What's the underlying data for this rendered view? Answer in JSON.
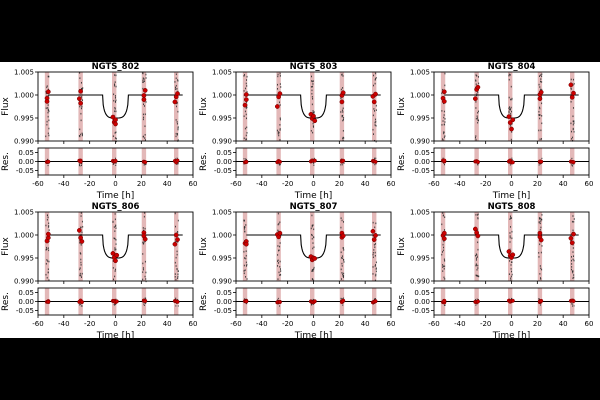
{
  "figure": {
    "background": "#ffffff",
    "band_color": "#000000",
    "model_color": "#000000",
    "point_color": "#cc0000",
    "raw_color": "#333333",
    "window_color": "#d9a0a0"
  },
  "chart_data": [
    {
      "type": "scatter",
      "title": "NGTS_802",
      "xlabel": "Time [h]",
      "ylabel_top": "Flux",
      "ylabel_bottom": "Res.",
      "xlim": [
        -60,
        60
      ],
      "xticks": [
        -60,
        -40,
        -20,
        0,
        20,
        40,
        60
      ],
      "ylim_top": [
        0.99,
        1.005
      ],
      "yticks_top": [
        "0.990",
        "0.995",
        "1.000",
        "1.005"
      ],
      "ylim_bottom": [
        -0.075,
        0.075
      ],
      "yticks_bottom": [
        "-0.05",
        "0.00",
        "0.05"
      ],
      "observation_windows": [
        -53,
        -27,
        -1,
        22,
        47
      ],
      "transit_model": {
        "baseline": 1.0,
        "depth": 0.005,
        "center": 0,
        "half_width": 10
      },
      "binned_points": [
        {
          "x": -53,
          "y": 0.9993
        },
        {
          "x": -53,
          "y": 0.9986
        },
        {
          "x": -52,
          "y": 1.0007
        },
        {
          "x": -28,
          "y": 0.9992
        },
        {
          "x": -27,
          "y": 0.9982
        },
        {
          "x": -27,
          "y": 1.0008
        },
        {
          "x": -2,
          "y": 0.9952
        },
        {
          "x": -1,
          "y": 0.9941
        },
        {
          "x": 0,
          "y": 0.9946
        },
        {
          "x": 0,
          "y": 0.9937
        },
        {
          "x": 22,
          "y": 0.9999
        },
        {
          "x": 22,
          "y": 0.999
        },
        {
          "x": 23,
          "y": 1.001
        },
        {
          "x": 46,
          "y": 0.9985
        },
        {
          "x": 47,
          "y": 0.9996
        },
        {
          "x": 48,
          "y": 1.0003
        }
      ]
    },
    {
      "type": "scatter",
      "title": "NGTS_803",
      "xlabel": "Time [h]",
      "ylabel_top": "Flux",
      "ylabel_bottom": "Res.",
      "xlim": [
        -60,
        60
      ],
      "xticks": [
        -60,
        -40,
        -20,
        0,
        20,
        40,
        60
      ],
      "ylim_top": [
        0.99,
        1.005
      ],
      "yticks_top": [
        "0.990",
        "0.995",
        "1.000",
        "1.005"
      ],
      "ylim_bottom": [
        -0.075,
        0.075
      ],
      "yticks_bottom": [
        "-0.05",
        "0.00",
        "0.05"
      ],
      "observation_windows": [
        -53,
        -27,
        -1,
        22,
        47
      ],
      "transit_model": {
        "baseline": 1.0,
        "depth": 0.005,
        "center": 0,
        "half_width": 10
      },
      "binned_points": [
        {
          "x": -53,
          "y": 0.9978
        },
        {
          "x": -52,
          "y": 1.0001
        },
        {
          "x": -52,
          "y": 0.999
        },
        {
          "x": -28,
          "y": 0.9975
        },
        {
          "x": -27,
          "y": 0.9996
        },
        {
          "x": -26,
          "y": 1.0003
        },
        {
          "x": -2,
          "y": 0.9958
        },
        {
          "x": -1,
          "y": 0.9949
        },
        {
          "x": 0,
          "y": 0.9954
        },
        {
          "x": 1,
          "y": 0.9944
        },
        {
          "x": 22,
          "y": 0.9999
        },
        {
          "x": 22,
          "y": 0.9985
        },
        {
          "x": 23,
          "y": 1.0005
        },
        {
          "x": 46,
          "y": 0.9997
        },
        {
          "x": 47,
          "y": 0.9985
        },
        {
          "x": 48,
          "y": 1.0002
        }
      ]
    },
    {
      "type": "scatter",
      "title": "NGTS_804",
      "xlabel": "Time [h]",
      "ylabel_top": "Flux",
      "ylabel_bottom": "Res.",
      "xlim": [
        -60,
        60
      ],
      "xticks": [
        -60,
        -40,
        -20,
        0,
        20,
        40,
        60
      ],
      "ylim_top": [
        0.99,
        1.005
      ],
      "yticks_top": [
        "0.990",
        "0.995",
        "1.000",
        "1.005"
      ],
      "ylim_bottom": [
        -0.075,
        0.075
      ],
      "yticks_bottom": [
        "-0.05",
        "0.00",
        "0.05"
      ],
      "observation_windows": [
        -53,
        -27,
        -1,
        22,
        47
      ],
      "transit_model": {
        "baseline": 1.0,
        "depth": 0.005,
        "center": 0,
        "half_width": 10
      },
      "binned_points": [
        {
          "x": -53,
          "y": 0.9993
        },
        {
          "x": -52,
          "y": 0.9986
        },
        {
          "x": -52,
          "y": 1.0007
        },
        {
          "x": -28,
          "y": 0.9992
        },
        {
          "x": -27,
          "y": 1.0012
        },
        {
          "x": -26,
          "y": 1.0017
        },
        {
          "x": -2,
          "y": 0.9953
        },
        {
          "x": -1,
          "y": 0.994
        },
        {
          "x": 0,
          "y": 0.9926
        },
        {
          "x": 1,
          "y": 0.9946
        },
        {
          "x": 22,
          "y": 1.0001
        },
        {
          "x": 22,
          "y": 0.9992
        },
        {
          "x": 23,
          "y": 1.0006
        },
        {
          "x": 46,
          "y": 1.0022
        },
        {
          "x": 47,
          "y": 0.9995
        },
        {
          "x": 48,
          "y": 1.0004
        }
      ]
    },
    {
      "type": "scatter",
      "title": "NGTS_806",
      "xlabel": "Time [h]",
      "ylabel_top": "Flux",
      "ylabel_bottom": "Res.",
      "xlim": [
        -60,
        60
      ],
      "xticks": [
        -60,
        -40,
        -20,
        0,
        20,
        40,
        60
      ],
      "ylim_top": [
        0.99,
        1.005
      ],
      "yticks_top": [
        "0.990",
        "0.995",
        "1.000",
        "1.005"
      ],
      "ylim_bottom": [
        -0.075,
        0.075
      ],
      "yticks_bottom": [
        "-0.05",
        "0.00",
        "0.05"
      ],
      "observation_windows": [
        -53,
        -27,
        -1,
        22,
        47
      ],
      "transit_model": {
        "baseline": 1.0,
        "depth": 0.005,
        "center": 0,
        "half_width": 10
      },
      "binned_points": [
        {
          "x": -53,
          "y": 0.9987
        },
        {
          "x": -52,
          "y": 0.9994
        },
        {
          "x": -52,
          "y": 1.0002
        },
        {
          "x": -28,
          "y": 1.001
        },
        {
          "x": -27,
          "y": 0.9994
        },
        {
          "x": -26,
          "y": 0.9986
        },
        {
          "x": -2,
          "y": 0.996
        },
        {
          "x": -1,
          "y": 0.9951
        },
        {
          "x": 0,
          "y": 0.9944
        },
        {
          "x": 1,
          "y": 0.9956
        },
        {
          "x": 22,
          "y": 1.0005
        },
        {
          "x": 22,
          "y": 0.9998
        },
        {
          "x": 23,
          "y": 0.9991
        },
        {
          "x": 46,
          "y": 0.998
        },
        {
          "x": 47,
          "y": 1.0
        },
        {
          "x": 48,
          "y": 0.999
        }
      ]
    },
    {
      "type": "scatter",
      "title": "NGTS_807",
      "xlabel": "Time [h]",
      "ylabel_top": "Flux",
      "ylabel_bottom": "Res.",
      "xlim": [
        -60,
        60
      ],
      "xticks": [
        -60,
        -40,
        -20,
        0,
        20,
        40,
        60
      ],
      "ylim_top": [
        0.99,
        1.005
      ],
      "yticks_top": [
        "0.990",
        "0.995",
        "1.000",
        "1.005"
      ],
      "ylim_bottom": [
        -0.075,
        0.075
      ],
      "yticks_bottom": [
        "-0.05",
        "0.00",
        "0.05"
      ],
      "observation_windows": [
        -53,
        -27,
        -1,
        22,
        47
      ],
      "transit_model": {
        "baseline": 1.0,
        "depth": 0.005,
        "center": 0,
        "half_width": 10
      },
      "binned_points": [
        {
          "x": -53,
          "y": 0.9982
        },
        {
          "x": -52,
          "y": 0.9986
        },
        {
          "x": -52,
          "y": 0.998
        },
        {
          "x": -28,
          "y": 1.0001
        },
        {
          "x": -27,
          "y": 0.9996
        },
        {
          "x": -26,
          "y": 1.0004
        },
        {
          "x": -2,
          "y": 0.9953
        },
        {
          "x": -1,
          "y": 0.9946
        },
        {
          "x": 0,
          "y": 0.995
        },
        {
          "x": 1,
          "y": 0.9949
        },
        {
          "x": 22,
          "y": 0.9995
        },
        {
          "x": 22,
          "y": 1.0004
        },
        {
          "x": 23,
          "y": 0.9998
        },
        {
          "x": 46,
          "y": 1.0008
        },
        {
          "x": 47,
          "y": 0.999
        },
        {
          "x": 48,
          "y": 0.9999
        }
      ]
    },
    {
      "type": "scatter",
      "title": "NGTS_808",
      "xlabel": "Time [h]",
      "ylabel_top": "Flux",
      "ylabel_bottom": "Res.",
      "xlim": [
        -60,
        60
      ],
      "xticks": [
        -60,
        -40,
        -20,
        0,
        20,
        40,
        60
      ],
      "ylim_top": [
        0.99,
        1.005
      ],
      "yticks_top": [
        "0.990",
        "0.995",
        "1.000",
        "1.005"
      ],
      "ylim_bottom": [
        -0.075,
        0.075
      ],
      "yticks_bottom": [
        "-0.05",
        "0.00",
        "0.05"
      ],
      "observation_windows": [
        -53,
        -27,
        -1,
        22,
        47
      ],
      "transit_model": {
        "baseline": 1.0,
        "depth": 0.005,
        "center": 0,
        "half_width": 10
      },
      "binned_points": [
        {
          "x": -53,
          "y": 0.9999
        },
        {
          "x": -52,
          "y": 0.9992
        },
        {
          "x": -52,
          "y": 1.0004
        },
        {
          "x": -28,
          "y": 1.0013
        },
        {
          "x": -27,
          "y": 1.0005
        },
        {
          "x": -26,
          "y": 0.9998
        },
        {
          "x": -2,
          "y": 0.9964
        },
        {
          "x": -1,
          "y": 0.9955
        },
        {
          "x": 0,
          "y": 0.9951
        },
        {
          "x": 1,
          "y": 0.9957
        },
        {
          "x": 22,
          "y": 0.9996
        },
        {
          "x": 22,
          "y": 1.0004
        },
        {
          "x": 23,
          "y": 0.9989
        },
        {
          "x": 46,
          "y": 0.9993
        },
        {
          "x": 47,
          "y": 0.9983
        },
        {
          "x": 48,
          "y": 1.0002
        }
      ]
    }
  ]
}
